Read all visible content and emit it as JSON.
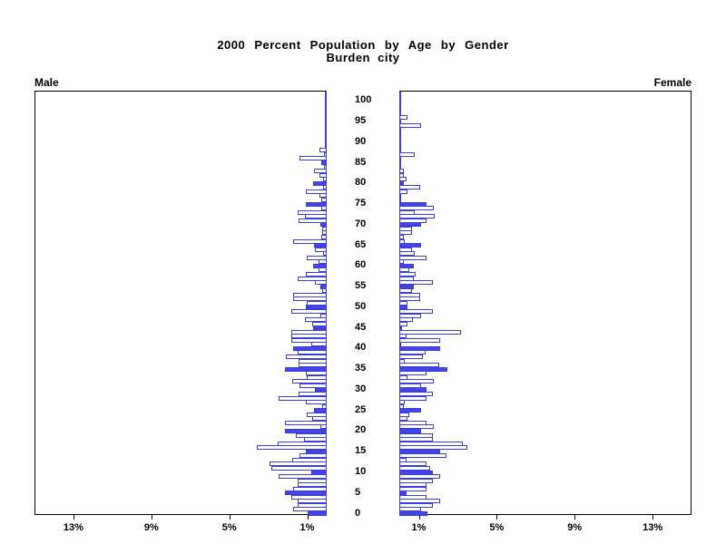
{
  "title": {
    "line1": "2000 Percent Population by Age by Gender",
    "line2": "Burden city"
  },
  "side_labels": {
    "left": "Male",
    "right": "Female"
  },
  "colors": {
    "bar_fill": "#4545e6",
    "bar_outline": "#3d3de0",
    "axis_line": "#3d3de0",
    "frame": "#000000"
  },
  "chart_data": {
    "type": "bar",
    "subtype": "population-pyramid",
    "title": "2000 Percent Population by Age by Gender",
    "subtitle": "Burden city",
    "left_series_name": "Male",
    "right_series_name": "Female",
    "age_min": 0,
    "age_max": 100,
    "age_bin_years": 1,
    "solid_bar_every": 5,
    "age_tick_labels": [
      "0",
      "5",
      "10",
      "15",
      "20",
      "25",
      "30",
      "35",
      "40",
      "45",
      "50",
      "55",
      "60",
      "65",
      "70",
      "75",
      "80",
      "85",
      "90",
      "95",
      "100"
    ],
    "age_tick_values": [
      0,
      5,
      10,
      15,
      20,
      25,
      30,
      35,
      40,
      45,
      50,
      55,
      60,
      65,
      70,
      75,
      80,
      85,
      90,
      95,
      100
    ],
    "x_tick_values": [
      1,
      5,
      9,
      13
    ],
    "x_tick_labels_male": [
      "13%",
      "9%",
      "5%",
      "1%"
    ],
    "x_tick_labels_female": [
      "1%",
      "5%",
      "9%",
      "13%"
    ],
    "xlim": [
      0,
      15
    ],
    "grid": false,
    "male_percent_by_age": [
      0.96,
      1.74,
      1.47,
      1.47,
      1.81,
      2.15,
      1.74,
      1.47,
      1.47,
      2.45,
      0.78,
      2.84,
      2.92,
      1.75,
      1.4,
      1.08,
      3.57,
      2.53,
      1.15,
      1.6,
      2.12,
      0.31,
      2.12,
      0.73,
      1.04,
      0.65,
      0.22,
      1.09,
      2.47,
      1.43,
      0.61,
      1.38,
      1.77,
      1.04,
      1.09,
      2.12,
      1.43,
      1.46,
      2.09,
      1.47,
      1.74,
      0.78,
      1.81,
      1.81,
      1.81,
      0.68,
      0.73,
      1.12,
      0.31,
      1.81,
      1.09,
      1.04,
      1.74,
      1.74,
      0.23,
      0.31,
      0.62,
      1.47,
      1.09,
      0.42,
      0.68,
      0.42,
      1.04,
      0.19,
      0.62,
      0.65,
      1.74,
      0.26,
      0.23,
      0.23,
      0.31,
      1.45,
      1.1,
      1.47,
      0.3,
      1.08,
      0.26,
      0.35,
      1.05,
      0.2,
      0.68,
      0.2,
      0.35,
      0.65,
      0.12,
      0.3,
      1.4,
      0.12,
      0.35,
      0,
      0,
      0,
      0,
      0,
      0,
      0,
      0,
      0,
      0,
      0,
      0
    ],
    "female_percent_by_age": [
      1.44,
      1.1,
      1.72,
      2.11,
      1.41,
      0.36,
      1.41,
      1.41,
      1.72,
      2.11,
      1.72,
      1.58,
      1.41,
      0.36,
      2.42,
      2.11,
      3.5,
      3.26,
      1.72,
      1.72,
      1.1,
      1.75,
      1.41,
      0.4,
      0.51,
      1.1,
      0.25,
      0.28,
      1.41,
      1.72,
      1.41,
      1.13,
      1.75,
      0.4,
      1.41,
      2.45,
      2.06,
      0.28,
      1.21,
      1.36,
      2.11,
      0,
      2.11,
      0.36,
      3.19,
      0.15,
      0.43,
      0.71,
      1.13,
      1.72,
      0.43,
      0.4,
      1.08,
      1.05,
      0.67,
      0.74,
      1.72,
      0.74,
      0.82,
      0.5,
      0.74,
      0.25,
      1.41,
      0.78,
      0.67,
      1.13,
      0.3,
      0.25,
      0.67,
      0.67,
      1.13,
      1.41,
      1.8,
      0.78,
      1.75,
      1.41,
      0,
      0,
      0.4,
      1.08,
      0.25,
      0.36,
      0.25,
      0.25,
      0,
      0,
      0,
      0.78,
      0,
      0,
      0,
      0,
      0,
      0,
      1.13,
      0,
      0.43,
      0,
      0,
      0,
      0
    ]
  }
}
